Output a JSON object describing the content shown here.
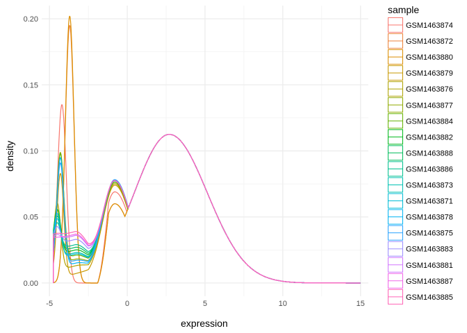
{
  "chart_data": {
    "type": "line",
    "title": "",
    "xlabel": "expression",
    "ylabel": "density",
    "xlim": [
      -5.5,
      15.5
    ],
    "ylim": [
      -0.01,
      0.21
    ],
    "x_ticks": [
      -5,
      0,
      5,
      10,
      15
    ],
    "x_tick_labels": [
      "-5",
      "0",
      "5",
      "10",
      "15"
    ],
    "y_ticks": [
      0.0,
      0.05,
      0.1,
      0.15,
      0.2
    ],
    "y_tick_labels": [
      "0.00",
      "0.05",
      "0.10",
      "0.15",
      "0.20"
    ],
    "grid": true,
    "legend": {
      "title": "sample",
      "position": "right"
    },
    "series": [
      {
        "name": "GSM1463874",
        "color": "#F8766D",
        "spike": 0.137,
        "spike_x": -4.2,
        "trough": 0.002,
        "shoulder": 0.069
      },
      {
        "name": "GSM1463872",
        "color": "#EC8239",
        "spike": 0.195,
        "spike_x": -3.7,
        "trough": 0.0,
        "shoulder": 0.06
      },
      {
        "name": "GSM1463880",
        "color": "#DB8E00",
        "spike": 0.202,
        "spike_x": -3.7,
        "trough": 0.0,
        "shoulder": 0.06
      },
      {
        "name": "GSM1463879",
        "color": "#C79800",
        "spike": 0.082,
        "spike_x": -4.3,
        "trough": 0.004,
        "shoulder": 0.074
      },
      {
        "name": "GSM1463876",
        "color": "#AEA200",
        "spike": 0.06,
        "spike_x": -4.5,
        "trough": 0.01,
        "shoulder": 0.075
      },
      {
        "name": "GSM1463877",
        "color": "#8FAA00",
        "spike": 0.098,
        "spike_x": -4.3,
        "trough": 0.015,
        "shoulder": 0.076
      },
      {
        "name": "GSM1463884",
        "color": "#64B200",
        "spike": 0.097,
        "spike_x": -4.3,
        "trough": 0.018,
        "shoulder": 0.076
      },
      {
        "name": "GSM1463882",
        "color": "#00B81B",
        "spike": 0.055,
        "spike_x": -4.5,
        "trough": 0.022,
        "shoulder": 0.077
      },
      {
        "name": "GSM1463888",
        "color": "#00BD5C",
        "spike": 0.05,
        "spike_x": -4.5,
        "trough": 0.024,
        "shoulder": 0.077
      },
      {
        "name": "GSM1463886",
        "color": "#00C08E",
        "spike": 0.045,
        "spike_x": -4.5,
        "trough": 0.026,
        "shoulder": 0.077
      },
      {
        "name": "GSM1463873",
        "color": "#00C1B2",
        "spike": 0.048,
        "spike_x": -4.5,
        "trough": 0.02,
        "shoulder": 0.077
      },
      {
        "name": "GSM1463871",
        "color": "#00BCD6",
        "spike": 0.052,
        "spike_x": -4.5,
        "trough": 0.019,
        "shoulder": 0.077
      },
      {
        "name": "GSM1463878",
        "color": "#00B3F2",
        "spike": 0.094,
        "spike_x": -4.3,
        "trough": 0.012,
        "shoulder": 0.078
      },
      {
        "name": "GSM1463875",
        "color": "#29A3FF",
        "spike": 0.09,
        "spike_x": -4.3,
        "trough": 0.014,
        "shoulder": 0.078
      },
      {
        "name": "GSM1463883",
        "color": "#9C8DFF",
        "spike": 0.042,
        "spike_x": -4.5,
        "trough": 0.03,
        "shoulder": 0.077
      },
      {
        "name": "GSM1463881",
        "color": "#D277FF",
        "spike": 0.036,
        "spike_x": -4.5,
        "trough": 0.033,
        "shoulder": 0.077
      },
      {
        "name": "GSM1463887",
        "color": "#F166E8",
        "spike": 0.034,
        "spike_x": -4.5,
        "trough": 0.034,
        "shoulder": 0.077
      },
      {
        "name": "GSM1463885",
        "color": "#FF63B6",
        "spike": 0.037,
        "spike_x": -4.5,
        "trough": 0.036,
        "shoulder": 0.077
      }
    ]
  }
}
